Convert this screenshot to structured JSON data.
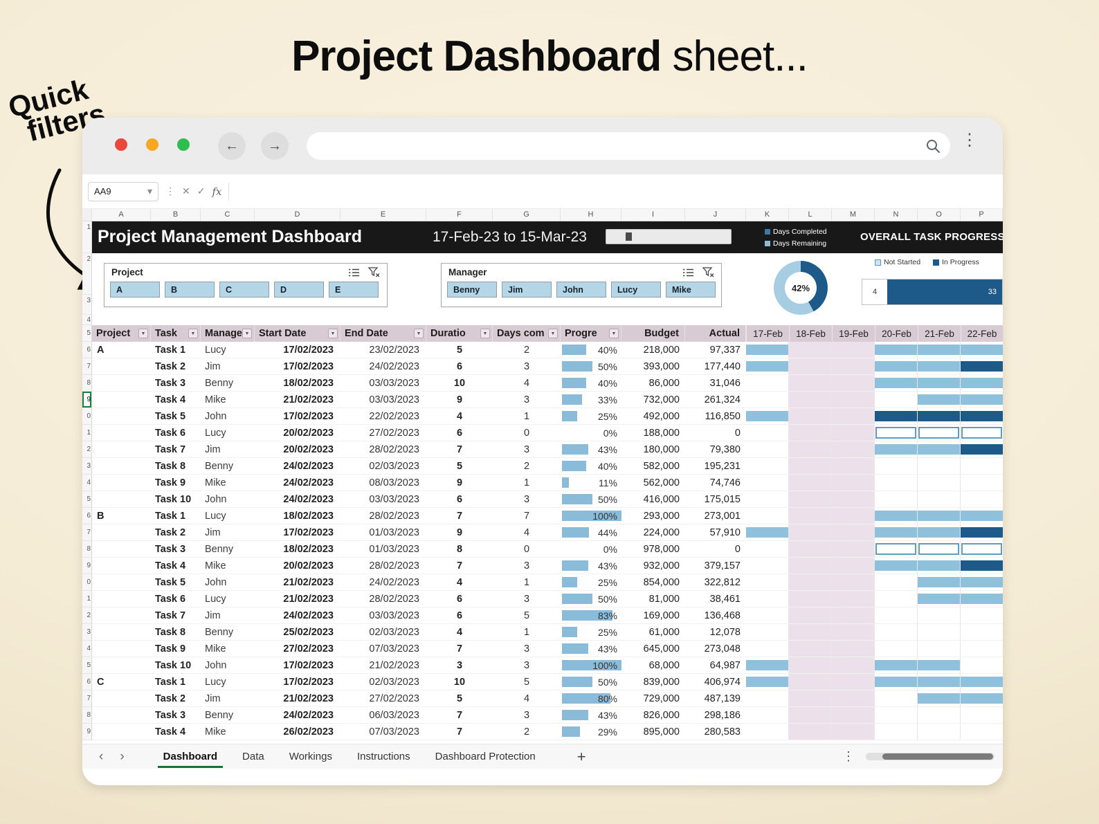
{
  "annotation": {
    "title_bold": "Project Dashboard",
    "title_rest": " sheet...",
    "callout_line1": "Quick",
    "callout_line2": "filters"
  },
  "browser": {
    "url_value": ""
  },
  "icons": {
    "back": "←",
    "forward": "→",
    "kebab": "⋮",
    "close_x": "✕",
    "check": "✓",
    "chevron_down": "▾",
    "dropdown": "▼",
    "prev": "‹",
    "next": "›",
    "plus": "+"
  },
  "sheet": {
    "name_box": "AA9",
    "fx_label": "fx",
    "col_letters": [
      "A",
      "B",
      "C",
      "D",
      "E",
      "F",
      "G",
      "H",
      "I",
      "J",
      "K",
      "L",
      "M",
      "N",
      "O",
      "P"
    ],
    "rail_labels": [
      "1",
      "2",
      "3",
      "4",
      "5"
    ],
    "banner": {
      "title": "Project Management Dashboard",
      "date_range": "17-Feb-23 to 15-Mar-23",
      "legend_completed": "Days Completed",
      "legend_remaining": "Days Remaining",
      "overall_label": "OVERALL TASK PROGRESS"
    },
    "filters": {
      "project": {
        "label": "Project",
        "options": [
          "A",
          "B",
          "C",
          "D",
          "E"
        ]
      },
      "manager": {
        "label": "Manager",
        "options": [
          "Benny",
          "Jim",
          "John",
          "Lucy",
          "Mike"
        ]
      }
    },
    "donut": {
      "percent": 42,
      "label": "42%"
    },
    "task_progress": {
      "not_started_label": "Not Started",
      "in_progress_label": "In Progress",
      "not_started_count": "4",
      "in_progress_count": "33"
    },
    "table": {
      "headers": [
        {
          "label": "Project",
          "filter": true
        },
        {
          "label": "Task",
          "filter": true
        },
        {
          "label": "Manage",
          "filter": true
        },
        {
          "label": "Start Date",
          "filter": true
        },
        {
          "label": "End Date",
          "filter": true
        },
        {
          "label": "Duratio",
          "filter": true
        },
        {
          "label": "Days com",
          "filter": true
        },
        {
          "label": "Progre",
          "filter": true
        },
        {
          "label": "Budget",
          "filter": false
        },
        {
          "label": "Actual",
          "filter": false
        }
      ],
      "date_headers": [
        "17-Feb",
        "18-Feb",
        "19-Feb",
        "20-Feb",
        "21-Feb",
        "22-Feb"
      ],
      "rows": [
        {
          "n": "6",
          "p": "A",
          "t": "Task 1",
          "m": "Lucy",
          "s": "17/02/2023",
          "e": "23/02/2023",
          "d": "5",
          "dc": "2",
          "pct": 40,
          "b": "218,000",
          "a": "97,337",
          "g": [
            "L",
            "",
            "",
            "L",
            "L",
            "L"
          ]
        },
        {
          "n": "7",
          "p": "",
          "t": "Task 2",
          "m": "Jim",
          "s": "17/02/2023",
          "e": "24/02/2023",
          "d": "6",
          "dc": "3",
          "pct": 50,
          "b": "393,000",
          "a": "177,440",
          "g": [
            "L",
            "",
            "",
            "L",
            "L",
            "D"
          ]
        },
        {
          "n": "8",
          "p": "",
          "t": "Task 3",
          "m": "Benny",
          "s": "18/02/2023",
          "e": "03/03/2023",
          "d": "10",
          "dc": "4",
          "pct": 40,
          "b": "86,000",
          "a": "31,046",
          "g": [
            "",
            "",
            "",
            "L",
            "L",
            "L"
          ]
        },
        {
          "n": "9",
          "p": "",
          "t": "Task 4",
          "m": "Mike",
          "s": "21/02/2023",
          "e": "03/03/2023",
          "d": "9",
          "dc": "3",
          "pct": 33,
          "b": "732,000",
          "a": "261,324",
          "g": [
            "",
            "",
            "",
            "",
            "L",
            "L"
          ],
          "sel": true
        },
        {
          "n": "0",
          "p": "",
          "t": "Task 5",
          "m": "John",
          "s": "17/02/2023",
          "e": "22/02/2023",
          "d": "4",
          "dc": "1",
          "pct": 25,
          "b": "492,000",
          "a": "116,850",
          "g": [
            "L",
            "",
            "",
            "D",
            "D",
            "D"
          ]
        },
        {
          "n": "1",
          "p": "",
          "t": "Task 6",
          "m": "Lucy",
          "s": "20/02/2023",
          "e": "27/02/2023",
          "d": "6",
          "dc": "0",
          "pct": 0,
          "b": "188,000",
          "a": "0",
          "g": [
            "",
            "",
            "",
            "O",
            "O",
            "O"
          ]
        },
        {
          "n": "2",
          "p": "",
          "t": "Task 7",
          "m": "Jim",
          "s": "20/02/2023",
          "e": "28/02/2023",
          "d": "7",
          "dc": "3",
          "pct": 43,
          "b": "180,000",
          "a": "79,380",
          "g": [
            "",
            "",
            "",
            "L",
            "L",
            "D"
          ]
        },
        {
          "n": "3",
          "p": "",
          "t": "Task 8",
          "m": "Benny",
          "s": "24/02/2023",
          "e": "02/03/2023",
          "d": "5",
          "dc": "2",
          "pct": 40,
          "b": "582,000",
          "a": "195,231",
          "g": [
            "",
            "",
            "",
            "",
            "",
            ""
          ]
        },
        {
          "n": "4",
          "p": "",
          "t": "Task 9",
          "m": "Mike",
          "s": "24/02/2023",
          "e": "08/03/2023",
          "d": "9",
          "dc": "1",
          "pct": 11,
          "b": "562,000",
          "a": "74,746",
          "g": [
            "",
            "",
            "",
            "",
            "",
            ""
          ]
        },
        {
          "n": "5",
          "p": "",
          "t": "Task 10",
          "m": "John",
          "s": "24/02/2023",
          "e": "03/03/2023",
          "d": "6",
          "dc": "3",
          "pct": 50,
          "b": "416,000",
          "a": "175,015",
          "g": [
            "",
            "",
            "",
            "",
            "",
            ""
          ]
        },
        {
          "n": "6",
          "p": "B",
          "t": "Task 1",
          "m": "Lucy",
          "s": "18/02/2023",
          "e": "28/02/2023",
          "d": "7",
          "dc": "7",
          "pct": 100,
          "b": "293,000",
          "a": "273,001",
          "g": [
            "",
            "",
            "",
            "L",
            "L",
            "L"
          ]
        },
        {
          "n": "7",
          "p": "",
          "t": "Task 2",
          "m": "Jim",
          "s": "17/02/2023",
          "e": "01/03/2023",
          "d": "9",
          "dc": "4",
          "pct": 44,
          "b": "224,000",
          "a": "57,910",
          "g": [
            "L",
            "",
            "",
            "L",
            "L",
            "D"
          ]
        },
        {
          "n": "8",
          "p": "",
          "t": "Task 3",
          "m": "Benny",
          "s": "18/02/2023",
          "e": "01/03/2023",
          "d": "8",
          "dc": "0",
          "pct": 0,
          "b": "978,000",
          "a": "0",
          "g": [
            "",
            "",
            "",
            "O",
            "O",
            "O"
          ]
        },
        {
          "n": "9",
          "p": "",
          "t": "Task 4",
          "m": "Mike",
          "s": "20/02/2023",
          "e": "28/02/2023",
          "d": "7",
          "dc": "3",
          "pct": 43,
          "b": "932,000",
          "a": "379,157",
          "g": [
            "",
            "",
            "",
            "L",
            "L",
            "D"
          ]
        },
        {
          "n": "0",
          "p": "",
          "t": "Task 5",
          "m": "John",
          "s": "21/02/2023",
          "e": "24/02/2023",
          "d": "4",
          "dc": "1",
          "pct": 25,
          "b": "854,000",
          "a": "322,812",
          "g": [
            "",
            "",
            "",
            "",
            "L",
            "L"
          ]
        },
        {
          "n": "1",
          "p": "",
          "t": "Task 6",
          "m": "Lucy",
          "s": "21/02/2023",
          "e": "28/02/2023",
          "d": "6",
          "dc": "3",
          "pct": 50,
          "b": "81,000",
          "a": "38,461",
          "g": [
            "",
            "",
            "",
            "",
            "L",
            "L"
          ]
        },
        {
          "n": "2",
          "p": "",
          "t": "Task 7",
          "m": "Jim",
          "s": "24/02/2023",
          "e": "03/03/2023",
          "d": "6",
          "dc": "5",
          "pct": 83,
          "b": "169,000",
          "a": "136,468",
          "g": [
            "",
            "",
            "",
            "",
            "",
            ""
          ]
        },
        {
          "n": "3",
          "p": "",
          "t": "Task 8",
          "m": "Benny",
          "s": "25/02/2023",
          "e": "02/03/2023",
          "d": "4",
          "dc": "1",
          "pct": 25,
          "b": "61,000",
          "a": "12,078",
          "g": [
            "",
            "",
            "",
            "",
            "",
            ""
          ]
        },
        {
          "n": "4",
          "p": "",
          "t": "Task 9",
          "m": "Mike",
          "s": "27/02/2023",
          "e": "07/03/2023",
          "d": "7",
          "dc": "3",
          "pct": 43,
          "b": "645,000",
          "a": "273,048",
          "g": [
            "",
            "",
            "",
            "",
            "",
            ""
          ]
        },
        {
          "n": "5",
          "p": "",
          "t": "Task 10",
          "m": "John",
          "s": "17/02/2023",
          "e": "21/02/2023",
          "d": "3",
          "dc": "3",
          "pct": 100,
          "b": "68,000",
          "a": "64,987",
          "g": [
            "L",
            "",
            "",
            "L",
            "L",
            ""
          ]
        },
        {
          "n": "6",
          "p": "C",
          "t": "Task 1",
          "m": "Lucy",
          "s": "17/02/2023",
          "e": "02/03/2023",
          "d": "10",
          "dc": "5",
          "pct": 50,
          "b": "839,000",
          "a": "406,974",
          "g": [
            "L",
            "",
            "",
            "L",
            "L",
            "L"
          ]
        },
        {
          "n": "7",
          "p": "",
          "t": "Task 2",
          "m": "Jim",
          "s": "21/02/2023",
          "e": "27/02/2023",
          "d": "5",
          "dc": "4",
          "pct": 80,
          "b": "729,000",
          "a": "487,139",
          "g": [
            "",
            "",
            "",
            "",
            "L",
            "L"
          ]
        },
        {
          "n": "8",
          "p": "",
          "t": "Task 3",
          "m": "Benny",
          "s": "24/02/2023",
          "e": "06/03/2023",
          "d": "7",
          "dc": "3",
          "pct": 43,
          "b": "826,000",
          "a": "298,186",
          "g": [
            "",
            "",
            "",
            "",
            "",
            ""
          ]
        },
        {
          "n": "9",
          "p": "",
          "t": "Task 4",
          "m": "Mike",
          "s": "26/02/2023",
          "e": "07/03/2023",
          "d": "7",
          "dc": "2",
          "pct": 29,
          "b": "895,000",
          "a": "280,583",
          "g": [
            "",
            "",
            "",
            "",
            "",
            ""
          ]
        }
      ]
    },
    "tabs": {
      "items": [
        "Dashboard",
        "Data",
        "Workings",
        "Instructions",
        "Dashboard Protection"
      ],
      "active": "Dashboard"
    },
    "colors": {
      "dark_blue": "#1d5a8a",
      "light_blue": "#8fc0dc",
      "weekend_pink": "#ece0ea",
      "header_mauve": "#d8cbd4",
      "tab_active_green": "#137333"
    }
  }
}
